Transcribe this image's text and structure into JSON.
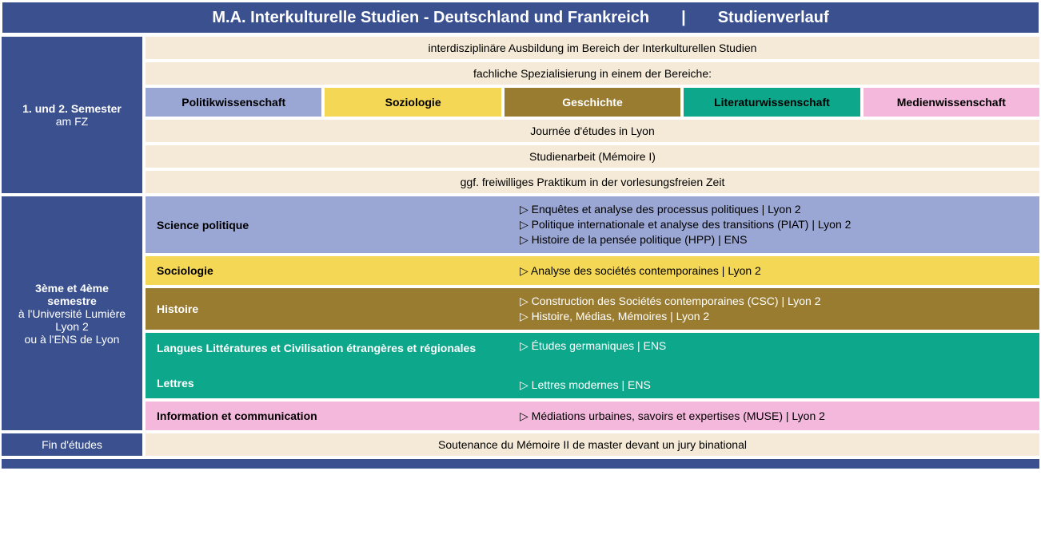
{
  "colors": {
    "blue": "#3b508f",
    "beige": "#f4ead7",
    "politik": "#9aa6d3",
    "soziologie": "#f5d756",
    "geschichte": "#9a7c31",
    "literatur": "#0da88b",
    "medien": "#f3b8dc",
    "white": "#ffffff",
    "black": "#000000",
    "darktext": "#1a1a1a"
  },
  "header": {
    "left": "M.A. Interkulturelle Studien - Deutschland und Frankreich",
    "sep": "|",
    "right": "Studienverlauf"
  },
  "sem1": {
    "sidebar_bold": "1. und 2. Semester",
    "sidebar_sub": "am FZ",
    "band1": "interdisziplinäre Ausbildung im Bereich der Interkulturellen Studien",
    "band2": "fachliche Spezialisierung in einem der Bereiche:",
    "subjects": [
      {
        "label": "Politikwissenschaft",
        "bg": "#9aa6d3",
        "fg": "#000000"
      },
      {
        "label": "Soziologie",
        "bg": "#f5d756",
        "fg": "#000000"
      },
      {
        "label": "Geschichte",
        "bg": "#9a7c31",
        "fg": "#ffffff"
      },
      {
        "label": "Literaturwissenschaft",
        "bg": "#0da88b",
        "fg": "#000000"
      },
      {
        "label": "Medienwissenschaft",
        "bg": "#f3b8dc",
        "fg": "#000000"
      }
    ],
    "band3": "Journée d'études in Lyon",
    "band4": "Studienarbeit (Mémoire I)",
    "band5": "ggf. freiwilliges Praktikum in der vorlesungsfreien Zeit"
  },
  "sem2": {
    "sidebar_l1b": "3ème et 4ème",
    "sidebar_l2b": "semestre",
    "sidebar_l3": "à l'Université Lumière",
    "sidebar_l4": "Lyon 2",
    "sidebar_l5": "ou à l'ENS de Lyon",
    "blocks": [
      {
        "bg": "#9aa6d3",
        "fg": "#000000",
        "label": "Science politique",
        "courses": [
          "Enquêtes et analyse des processus politiques  |  Lyon 2",
          "Politique internationale et analyse des transitions (PIAT)  |  Lyon 2",
          "Histoire de la pensée politique (HPP)  |  ENS"
        ]
      },
      {
        "bg": "#f5d756",
        "fg": "#000000",
        "label": "Sociologie",
        "courses": [
          "Analyse des sociétés contemporaines  |  Lyon 2"
        ]
      },
      {
        "bg": "#9a7c31",
        "fg": "#ffffff",
        "label": "Histoire",
        "courses": [
          "Construction des Sociétés contemporaines (CSC)  |  Lyon 2",
          "Histoire, Médias, Mémoires  |  Lyon 2"
        ]
      },
      {
        "bg": "#0da88b",
        "fg": "#ffffff",
        "label1": "Langues Littératures et Civilisation étrangères et régionales",
        "label2": "Lettres",
        "courses1": [
          "Études germaniques  |  ENS"
        ],
        "courses2": [
          "Lettres modernes  |  ENS"
        ],
        "double": true
      },
      {
        "bg": "#f3b8dc",
        "fg": "#000000",
        "label": "Information et communication",
        "courses": [
          "Médiations urbaines, savoirs et expertises (MUSE)  |  Lyon 2"
        ]
      }
    ]
  },
  "fin": {
    "sidebar": "Fin d'études",
    "band": "Soutenance du Mémoire II de master devant un jury binational"
  }
}
